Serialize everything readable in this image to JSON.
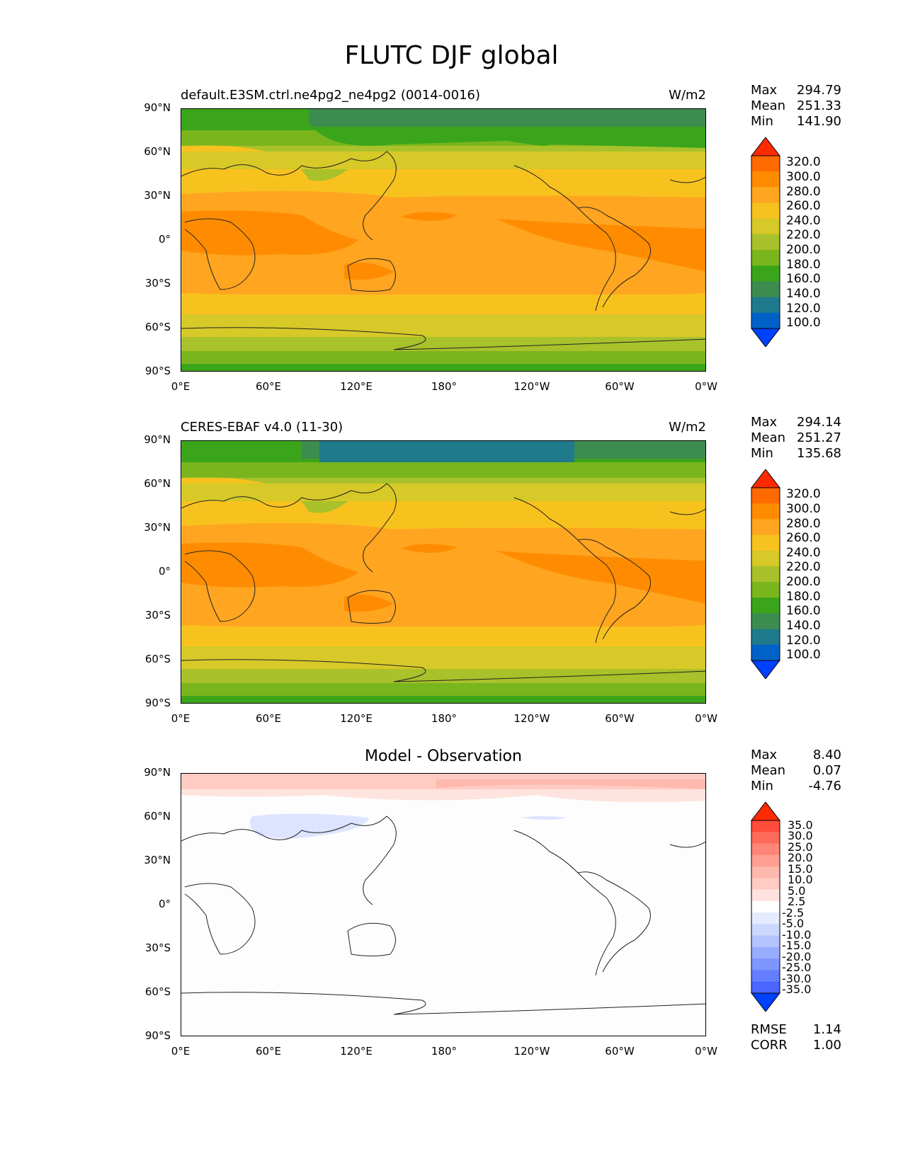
{
  "title": "FLUTC DJF global",
  "panels": [
    {
      "id": "model",
      "label": "default.E3SM.ctrl.ne4pg2_ne4pg2 (0014-0016)",
      "units": "W/m2",
      "stats": {
        "max_label": "Max",
        "max": "294.79",
        "mean_label": "Mean",
        "mean": "251.33",
        "min_label": "Min",
        "min": "141.90"
      },
      "colorbar_levels": [
        "320.0",
        "300.0",
        "280.0",
        "260.0",
        "240.0",
        "220.0",
        "200.0",
        "180.0",
        "160.0",
        "140.0",
        "120.0",
        "100.0"
      ]
    },
    {
      "id": "obs",
      "label": "CERES-EBAF v4.0 (11-30)",
      "units": "W/m2",
      "stats": {
        "max_label": "Max",
        "max": "294.14",
        "mean_label": "Mean",
        "mean": "251.27",
        "min_label": "Min",
        "min": "135.68"
      },
      "colorbar_levels": [
        "320.0",
        "300.0",
        "280.0",
        "260.0",
        "240.0",
        "220.0",
        "200.0",
        "180.0",
        "160.0",
        "140.0",
        "120.0",
        "100.0"
      ]
    },
    {
      "id": "diff",
      "label": "Model - Observation",
      "units": "",
      "stats": {
        "max_label": "Max",
        "max": "8.40",
        "mean_label": "Mean",
        "mean": "0.07",
        "min_label": "Min",
        "min": "-4.76"
      },
      "colorbar_levels": [
        "35.0",
        "30.0",
        "25.0",
        "20.0",
        "15.0",
        "10.0",
        "5.0",
        "2.5",
        "-2.5",
        "-5.0",
        "-10.0",
        "-15.0",
        "-20.0",
        "-25.0",
        "-30.0",
        "-35.0"
      ],
      "rmse_label": "RMSE",
      "rmse": "1.14",
      "corr_label": "CORR",
      "corr": "1.00"
    }
  ],
  "y_ticks": [
    "90°N",
    "60°N",
    "30°N",
    "0°",
    "30°S",
    "60°S",
    "90°S"
  ],
  "x_ticks": [
    "0°E",
    "60°E",
    "120°E",
    "180°",
    "120°W",
    "60°W",
    "0°W"
  ],
  "colors": {
    "abs_scale": [
      "#ff2a00",
      "#ff6a00",
      "#ff8c00",
      "#ffa520",
      "#f8c21e",
      "#d6c928",
      "#a9c12a",
      "#7ab51e",
      "#3aa51a",
      "#3c8c4f",
      "#1f7a8c",
      "#0062c8",
      "#0040ff"
    ],
    "diff_scale": [
      "#ff2a00",
      "#ff4d3c",
      "#ff6a5a",
      "#ff8577",
      "#ff9f92",
      "#ffb8ad",
      "#ffcbc2",
      "#ffe3de",
      "#ffffff",
      "#e6ecff",
      "#cdd8ff",
      "#b3c4ff",
      "#99adff",
      "#7f95ff",
      "#647eff",
      "#4a66ff",
      "#0040ff"
    ]
  }
}
